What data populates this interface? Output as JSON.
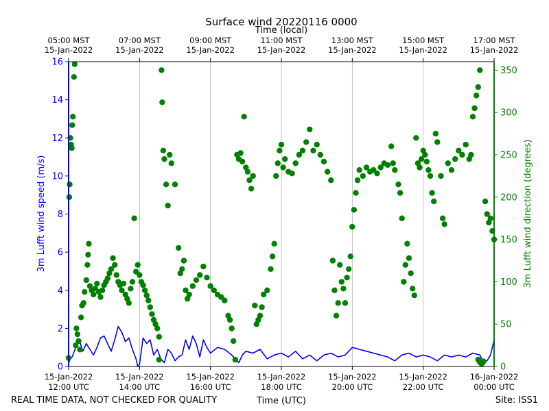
{
  "chart_data": {
    "type": "line+scatter",
    "title": "Surface wind 20220116 0000",
    "top_axis_label": "Time (local)",
    "xlabel": "Time (UTC)",
    "ylabel_left": "3m Lufft wind speed (m/s)",
    "ylabel_right": "3m Lufft wind direction (degrees)",
    "footer_left": "REAL TIME DATA, NOT CHECKED FOR QUALITY",
    "footer_right": "Site: ISS1",
    "xlim_hours_utc": [
      12.0,
      24.0
    ],
    "ylim_left": [
      0,
      16
    ],
    "ylim_right": [
      0,
      360
    ],
    "left_yticks": [
      "0",
      "2",
      "4",
      "6",
      "8",
      "10",
      "12",
      "14",
      "16"
    ],
    "right_yticks": [
      "0",
      "50",
      "100",
      "150",
      "200",
      "250",
      "300",
      "350"
    ],
    "bottom_ticks": [
      {
        "hour": 12,
        "date": "15-Jan-2022",
        "time": "12:00 UTC"
      },
      {
        "hour": 14,
        "date": "15-Jan-2022",
        "time": "14:00 UTC"
      },
      {
        "hour": 16,
        "date": "15-Jan-2022",
        "time": "16:00 UTC"
      },
      {
        "hour": 18,
        "date": "15-Jan-2022",
        "time": "18:00 UTC"
      },
      {
        "hour": 20,
        "date": "15-Jan-2022",
        "time": "20:00 UTC"
      },
      {
        "hour": 22,
        "date": "15-Jan-2022",
        "time": "22:00 UTC"
      },
      {
        "hour": 24,
        "date": "16-Jan-2022",
        "time": "00:00 UTC"
      }
    ],
    "top_ticks": [
      {
        "hour": 12,
        "time": "05:00 MST",
        "date": "15-Jan-2022"
      },
      {
        "hour": 14,
        "time": "07:00 MST",
        "date": "15-Jan-2022"
      },
      {
        "hour": 16,
        "time": "09:00 MST",
        "date": "15-Jan-2022"
      },
      {
        "hour": 18,
        "time": "11:00 MST",
        "date": "15-Jan-2022"
      },
      {
        "hour": 20,
        "time": "13:00 MST",
        "date": "15-Jan-2022"
      },
      {
        "hour": 22,
        "time": "15:00 MST",
        "date": "15-Jan-2022"
      },
      {
        "hour": 24,
        "time": "17:00 MST",
        "date": "15-Jan-2022"
      }
    ],
    "series": [
      {
        "name": "3m Lufft wind speed",
        "axis": "left",
        "style": "line",
        "color": "#0000ff",
        "x_hours": [
          12.0,
          12.05,
          12.1,
          12.2,
          12.3,
          12.4,
          12.5,
          12.6,
          12.7,
          12.8,
          12.9,
          13.0,
          13.1,
          13.2,
          13.3,
          13.4,
          13.5,
          13.6,
          13.7,
          13.8,
          13.9,
          13.95,
          14.0,
          14.05,
          14.1,
          14.2,
          14.3,
          14.4,
          14.5,
          14.6,
          14.7,
          14.8,
          14.9,
          15.0,
          15.1,
          15.2,
          15.3,
          15.4,
          15.5,
          15.6,
          15.7,
          15.8,
          15.9,
          16.0,
          16.2,
          16.4,
          16.6,
          16.7,
          16.8,
          16.9,
          17.0,
          17.2,
          17.4,
          17.6,
          17.8,
          18.0,
          18.2,
          18.4,
          18.6,
          18.8,
          19.0,
          19.2,
          19.4,
          19.6,
          19.8,
          20.0,
          20.2,
          20.4,
          20.6,
          20.8,
          21.0,
          21.2,
          21.4,
          21.6,
          21.8,
          22.0,
          22.2,
          22.4,
          22.6,
          22.8,
          23.0,
          23.2,
          23.4,
          23.6,
          23.7,
          23.8,
          23.9,
          24.0
        ],
        "values": [
          0.2,
          0.4,
          0.5,
          1.0,
          1.4,
          0.8,
          1.2,
          0.9,
          0.6,
          1.0,
          1.5,
          1.6,
          1.2,
          0.8,
          1.4,
          2.1,
          1.8,
          1.3,
          1.5,
          0.9,
          0.4,
          0.0,
          0.1,
          0.8,
          1.5,
          1.2,
          1.4,
          0.6,
          0.9,
          0.4,
          0.2,
          0.9,
          0.7,
          0.3,
          0.5,
          0.6,
          1.4,
          0.9,
          1.6,
          1.2,
          0.5,
          1.4,
          1.0,
          0.7,
          1.0,
          0.9,
          0.6,
          0.4,
          0.2,
          0.6,
          0.8,
          0.7,
          0.9,
          0.4,
          0.6,
          0.7,
          0.5,
          0.8,
          0.4,
          0.6,
          0.3,
          0.6,
          0.7,
          0.5,
          0.6,
          1.0,
          0.9,
          0.8,
          0.7,
          0.6,
          0.5,
          0.3,
          0.6,
          0.7,
          0.5,
          0.6,
          0.5,
          0.3,
          0.6,
          0.5,
          0.6,
          0.5,
          0.7,
          0.6,
          0.2,
          0.3,
          0.6,
          1.4
        ]
      },
      {
        "name": "3m Lufft wind direction",
        "axis": "right",
        "style": "scatter",
        "color": "#008000",
        "points": [
          [
            12.0,
            10
          ],
          [
            12.02,
            200
          ],
          [
            12.03,
            215
          ],
          [
            12.05,
            270
          ],
          [
            12.07,
            262
          ],
          [
            12.09,
            258
          ],
          [
            12.1,
            285
          ],
          [
            12.12,
            295
          ],
          [
            12.15,
            342
          ],
          [
            12.17,
            357
          ],
          [
            12.2,
            25
          ],
          [
            12.22,
            45
          ],
          [
            12.25,
            38
          ],
          [
            12.28,
            30
          ],
          [
            12.32,
            20
          ],
          [
            12.35,
            58
          ],
          [
            12.38,
            72
          ],
          [
            12.42,
            75
          ],
          [
            12.45,
            88
          ],
          [
            12.5,
            102
          ],
          [
            12.53,
            120
          ],
          [
            12.55,
            132
          ],
          [
            12.57,
            145
          ],
          [
            12.6,
            95
          ],
          [
            12.65,
            90
          ],
          [
            12.7,
            85
          ],
          [
            12.75,
            92
          ],
          [
            12.8,
            98
          ],
          [
            12.85,
            88
          ],
          [
            12.9,
            82
          ],
          [
            12.95,
            90
          ],
          [
            13.0,
            96
          ],
          [
            13.05,
            100
          ],
          [
            13.1,
            104
          ],
          [
            13.15,
            110
          ],
          [
            13.2,
            115
          ],
          [
            13.25,
            128
          ],
          [
            13.3,
            120
          ],
          [
            13.35,
            108
          ],
          [
            13.4,
            100
          ],
          [
            13.45,
            96
          ],
          [
            13.5,
            90
          ],
          [
            13.55,
            98
          ],
          [
            13.6,
            85
          ],
          [
            13.65,
            80
          ],
          [
            13.7,
            75
          ],
          [
            13.75,
            92
          ],
          [
            13.8,
            100
          ],
          [
            13.85,
            175
          ],
          [
            13.9,
            112
          ],
          [
            13.95,
            120
          ],
          [
            14.0,
            108
          ],
          [
            14.05,
            100
          ],
          [
            14.1,
            96
          ],
          [
            14.15,
            90
          ],
          [
            14.2,
            84
          ],
          [
            14.25,
            78
          ],
          [
            14.3,
            70
          ],
          [
            14.35,
            62
          ],
          [
            14.4,
            55
          ],
          [
            14.45,
            50
          ],
          [
            14.5,
            45
          ],
          [
            14.55,
            35
          ],
          [
            14.62,
            350
          ],
          [
            14.64,
            312
          ],
          [
            14.67,
            255
          ],
          [
            14.7,
            245
          ],
          [
            14.75,
            215
          ],
          [
            14.8,
            190
          ],
          [
            14.85,
            250
          ],
          [
            14.9,
            240
          ],
          [
            15.0,
            215
          ],
          [
            14.55,
            8
          ],
          [
            15.1,
            140
          ],
          [
            15.15,
            110
          ],
          [
            15.2,
            115
          ],
          [
            15.25,
            125
          ],
          [
            15.3,
            90
          ],
          [
            15.35,
            80
          ],
          [
            15.4,
            85
          ],
          [
            15.5,
            95
          ],
          [
            15.6,
            102
          ],
          [
            15.7,
            108
          ],
          [
            15.8,
            118
          ],
          [
            15.9,
            105
          ],
          [
            16.0,
            95
          ],
          [
            16.1,
            90
          ],
          [
            16.2,
            85
          ],
          [
            16.3,
            82
          ],
          [
            16.4,
            78
          ],
          [
            16.5,
            60
          ],
          [
            16.55,
            55
          ],
          [
            16.6,
            45
          ],
          [
            16.65,
            30
          ],
          [
            16.7,
            8
          ],
          [
            16.75,
            250
          ],
          [
            16.8,
            245
          ],
          [
            16.85,
            252
          ],
          [
            16.9,
            242
          ],
          [
            16.95,
            295
          ],
          [
            17.0,
            235
          ],
          [
            17.05,
            230
          ],
          [
            17.1,
            220
          ],
          [
            17.15,
            210
          ],
          [
            17.2,
            225
          ],
          [
            17.25,
            72
          ],
          [
            17.3,
            50
          ],
          [
            17.35,
            55
          ],
          [
            17.4,
            60
          ],
          [
            17.45,
            70
          ],
          [
            17.5,
            85
          ],
          [
            17.6,
            90
          ],
          [
            17.7,
            115
          ],
          [
            17.75,
            130
          ],
          [
            17.8,
            145
          ],
          [
            17.85,
            225
          ],
          [
            17.9,
            240
          ],
          [
            17.95,
            255
          ],
          [
            18.0,
            262
          ],
          [
            18.05,
            235
          ],
          [
            18.1,
            245
          ],
          [
            18.2,
            230
          ],
          [
            18.3,
            228
          ],
          [
            18.4,
            240
          ],
          [
            18.5,
            250
          ],
          [
            18.6,
            255
          ],
          [
            18.7,
            265
          ],
          [
            18.8,
            280
          ],
          [
            18.9,
            255
          ],
          [
            19.0,
            262
          ],
          [
            19.1,
            250
          ],
          [
            19.2,
            242
          ],
          [
            19.3,
            230
          ],
          [
            19.4,
            220
          ],
          [
            19.45,
            125
          ],
          [
            19.5,
            90
          ],
          [
            19.55,
            60
          ],
          [
            19.6,
            75
          ],
          [
            19.65,
            120
          ],
          [
            19.7,
            100
          ],
          [
            19.75,
            92
          ],
          [
            19.8,
            75
          ],
          [
            19.85,
            105
          ],
          [
            19.9,
            115
          ],
          [
            19.95,
            130
          ],
          [
            20.0,
            165
          ],
          [
            20.05,
            185
          ],
          [
            20.1,
            205
          ],
          [
            20.15,
            220
          ],
          [
            20.2,
            232
          ],
          [
            20.3,
            225
          ],
          [
            20.4,
            235
          ],
          [
            20.5,
            230
          ],
          [
            20.6,
            232
          ],
          [
            20.7,
            228
          ],
          [
            20.8,
            235
          ],
          [
            20.9,
            240
          ],
          [
            21.0,
            238
          ],
          [
            21.1,
            260
          ],
          [
            21.15,
            240
          ],
          [
            21.2,
            232
          ],
          [
            21.3,
            215
          ],
          [
            21.35,
            205
          ],
          [
            21.4,
            175
          ],
          [
            21.45,
            100
          ],
          [
            21.5,
            120
          ],
          [
            21.55,
            145
          ],
          [
            21.6,
            128
          ],
          [
            21.65,
            110
          ],
          [
            21.7,
            92
          ],
          [
            21.75,
            84
          ],
          [
            21.8,
            270
          ],
          [
            21.85,
            240
          ],
          [
            21.9,
            235
          ],
          [
            21.95,
            245
          ],
          [
            22.0,
            255
          ],
          [
            22.05,
            250
          ],
          [
            22.1,
            242
          ],
          [
            22.15,
            232
          ],
          [
            22.2,
            225
          ],
          [
            22.25,
            205
          ],
          [
            22.3,
            195
          ],
          [
            22.35,
            275
          ],
          [
            22.4,
            265
          ],
          [
            22.5,
            225
          ],
          [
            22.55,
            175
          ],
          [
            22.6,
            168
          ],
          [
            22.7,
            240
          ],
          [
            22.8,
            232
          ],
          [
            22.9,
            245
          ],
          [
            23.0,
            255
          ],
          [
            23.1,
            250
          ],
          [
            23.2,
            262
          ],
          [
            23.3,
            245
          ],
          [
            23.35,
            250
          ],
          [
            23.4,
            295
          ],
          [
            23.45,
            305
          ],
          [
            23.5,
            320
          ],
          [
            23.55,
            330
          ],
          [
            23.6,
            350
          ],
          [
            23.75,
            195
          ],
          [
            23.8,
            180
          ],
          [
            23.85,
            170
          ],
          [
            23.9,
            175
          ],
          [
            23.95,
            160
          ],
          [
            24.0,
            150
          ],
          [
            23.55,
            8
          ],
          [
            23.6,
            5
          ],
          [
            23.65,
            3
          ],
          [
            23.7,
            6
          ]
        ]
      }
    ]
  }
}
